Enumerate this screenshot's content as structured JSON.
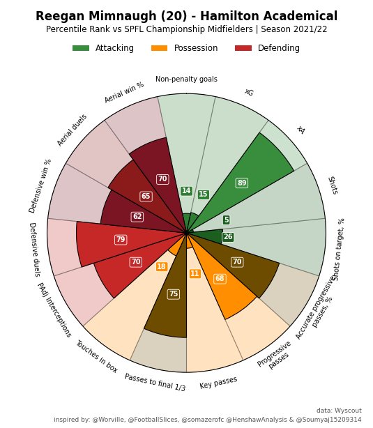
{
  "chart_data": {
    "type": "pizza",
    "title": "Reegan Mimnaugh (20) - Hamilton Academical",
    "subtitle": "Percentile Rank vs SPFL Championship Midfielders | Season 2021/22",
    "categories": [
      "Non-penalty goals",
      "xG",
      "xA",
      "Shots",
      "Shots on target, %",
      "Accurate progressive\npasses, %",
      "Progressive\npasses",
      "Key passes",
      "Passes to final 1/3",
      "Touches in box",
      "PAdj Interceptions",
      "Defensive duels",
      "Defensive win %",
      "Aerial duels",
      "Aerial win %"
    ],
    "values": [
      14,
      15,
      89,
      5,
      26,
      70,
      68,
      11,
      75,
      18,
      70,
      79,
      62,
      65,
      70
    ],
    "colors": [
      "#2e7d32",
      "#2e7d32",
      "#388e3c",
      "#1b5e20",
      "#1b5e20",
      "#6d4c00",
      "#ff8f00",
      "#ff8f00",
      "#6d4c00",
      "#ff8f00",
      "#c62828",
      "#c62828",
      "#7b1523",
      "#8b1a1a",
      "#7b1523"
    ],
    "groups": [
      {
        "name": "Attacking",
        "color": "#388e3c"
      },
      {
        "name": "Possession",
        "color": "#ff8f00"
      },
      {
        "name": "Defending",
        "color": "#c62828"
      }
    ],
    "legend": "upper center",
    "ylim": [
      0,
      100
    ],
    "grid": false,
    "tick_labels": false,
    "data_labels": true,
    "annotations": [
      "data: Wyscout",
      "inspired by: @Worville, @FootballSlices, @somazerofc @HenshawAnalysis & @Soumyaj15209314"
    ]
  }
}
